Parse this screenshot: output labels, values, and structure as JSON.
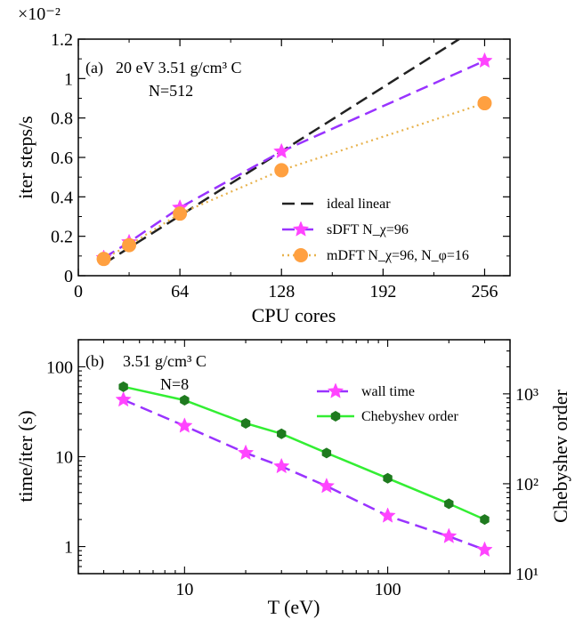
{
  "chart_data": [
    {
      "type": "line",
      "panel_label": "(a)",
      "annotation_line1": "20 eV 3.51 g/cm³ C",
      "annotation_line2": "N=512",
      "xlabel": "CPU cores",
      "ylabel": "iter steps/s",
      "y_multiplier": "×10⁻²",
      "xlim": [
        0,
        272
      ],
      "ylim": [
        0,
        1.2
      ],
      "xticks": [
        0,
        64,
        128,
        192,
        256
      ],
      "yticks": [
        0,
        0.2,
        0.4,
        0.6,
        0.8,
        1,
        1.2
      ],
      "ytick_labels": [
        "0",
        "0.2",
        "0.4",
        "0.6",
        "0.8",
        "1",
        "1.2"
      ],
      "grid": false,
      "legend_position": "bottom-right",
      "series": [
        {
          "name": "ideal linear",
          "color": "#222222",
          "style": "dashed",
          "marker": "none",
          "x": [
            16,
            240
          ],
          "y": [
            0.06,
            1.2
          ]
        },
        {
          "name": "sDFT N_χ=96",
          "color": "#9933ff",
          "marker_color": "#ff44ff",
          "style": "dashed",
          "marker": "star",
          "x": [
            16,
            32,
            64,
            128,
            256
          ],
          "y": [
            0.09,
            0.17,
            0.345,
            0.63,
            1.09
          ]
        },
        {
          "name": "mDFT N_χ=96, N_φ=16",
          "color": "#e8b24c",
          "marker_color": "#ffa040",
          "style": "dotted",
          "marker": "circle",
          "x": [
            16,
            32,
            64,
            128,
            256
          ],
          "y": [
            0.085,
            0.155,
            0.315,
            0.535,
            0.875
          ]
        }
      ]
    },
    {
      "type": "line",
      "panel_label": "(b)",
      "annotation_line1": "3.51 g/cm³ C",
      "annotation_line2": "N=8",
      "xlabel": "T (eV)",
      "ylabel": "time/iter (s)",
      "y2label": "Chebyshev order",
      "xscale": "log",
      "yscale": "log",
      "y2scale": "log",
      "xlim": [
        3,
        400
      ],
      "ylim": [
        0.5,
        200
      ],
      "y2lim": [
        10,
        4000
      ],
      "xticks": [
        10,
        100
      ],
      "xtick_labels": [
        "10",
        "100"
      ],
      "yticks": [
        1,
        10,
        100
      ],
      "ytick_labels": [
        "1",
        "10",
        "100"
      ],
      "y2ticks": [
        10,
        100,
        1000
      ],
      "y2tick_labels": [
        "10¹",
        "10²",
        "10³"
      ],
      "grid": false,
      "legend_position": "top-right",
      "series": [
        {
          "name": "wall time",
          "axis": "left",
          "color": "#9933ff",
          "marker_color": "#ff44ff",
          "style": "dashed",
          "marker": "star",
          "x": [
            5,
            10,
            20,
            30,
            50,
            100,
            200,
            300
          ],
          "y": [
            43,
            22,
            11,
            7.8,
            4.7,
            2.2,
            1.3,
            0.92
          ]
        },
        {
          "name": "Chebyshev order",
          "axis": "right",
          "color": "#33ee33",
          "marker_color": "#1f7a1f",
          "style": "solid",
          "marker": "hexagon",
          "x": [
            5,
            10,
            20,
            30,
            50,
            100,
            200,
            300
          ],
          "y": [
            1200,
            850,
            470,
            360,
            220,
            115,
            60,
            40
          ]
        }
      ]
    }
  ]
}
